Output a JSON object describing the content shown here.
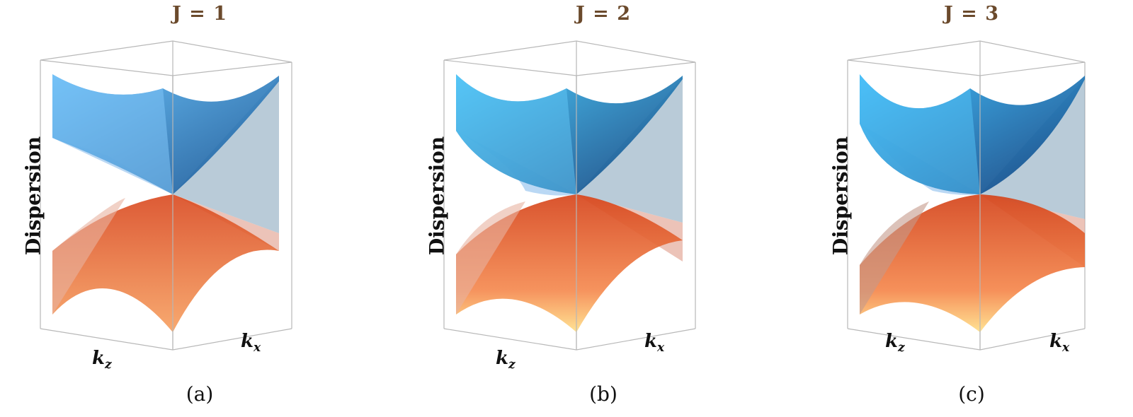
{
  "panels": [
    {
      "title": "J = 1",
      "ylabel": "Dispersion",
      "kz_main": "k",
      "kz_sub": "z",
      "kx_main": "k",
      "kx_sub": "x",
      "caption": "(a)"
    },
    {
      "title": "J = 2",
      "ylabel": "Dispersion",
      "kz_main": "k",
      "kz_sub": "z",
      "kx_main": "k",
      "kx_sub": "x",
      "caption": "(b)"
    },
    {
      "title": "J = 3",
      "ylabel": "Dispersion",
      "kz_main": "k",
      "kz_sub": "z",
      "kx_main": "k",
      "kx_sub": "x",
      "caption": "(c)"
    }
  ],
  "colors": {
    "upper_band": "#2f8fe0",
    "upper_band_dark": "#14508f",
    "lower_band": "#e8602a",
    "lower_band_light": "#ffd98a",
    "title": "#6b4a2c",
    "box_edge": "#b0b0b0"
  }
}
